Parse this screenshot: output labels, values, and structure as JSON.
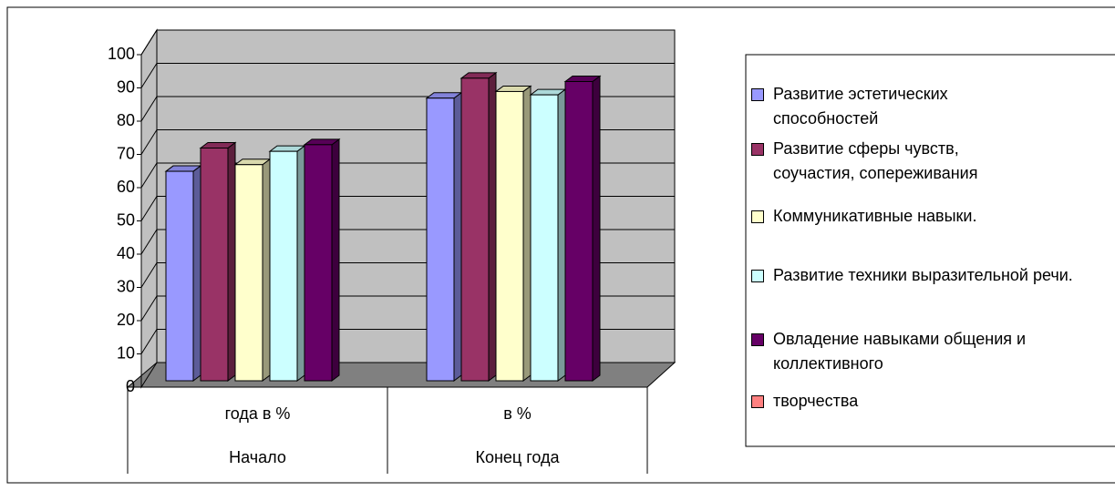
{
  "chart_data": {
    "type": "bar3d",
    "categories": [
      "года в %",
      "в %"
    ],
    "category_groups": [
      "Начало",
      "Конец года"
    ],
    "series": [
      {
        "name": "Развитие эстетических способностей",
        "color": "#9999ff",
        "values": [
          63,
          85
        ]
      },
      {
        "name": "Развитие сферы чувств, соучастия, сопереживания",
        "color": "#993366",
        "values": [
          70,
          91
        ]
      },
      {
        "name": "Коммуникативные навыки.",
        "color": "#ffffcc",
        "values": [
          65,
          87
        ]
      },
      {
        "name": "Развитие техники выразительной речи.",
        "color": "#ccffff",
        "values": [
          69,
          86
        ]
      },
      {
        "name": "Овладение навыками общения и коллективного",
        "color": "#660066",
        "values": [
          71,
          90
        ]
      },
      {
        "name": "творчества",
        "color": "#ff8080",
        "values": [
          null,
          null
        ]
      }
    ],
    "ylim": [
      0,
      100
    ],
    "yticks": [
      0,
      10,
      20,
      30,
      40,
      50,
      60,
      70,
      80,
      90,
      100
    ],
    "grid": true,
    "legend": "right"
  }
}
